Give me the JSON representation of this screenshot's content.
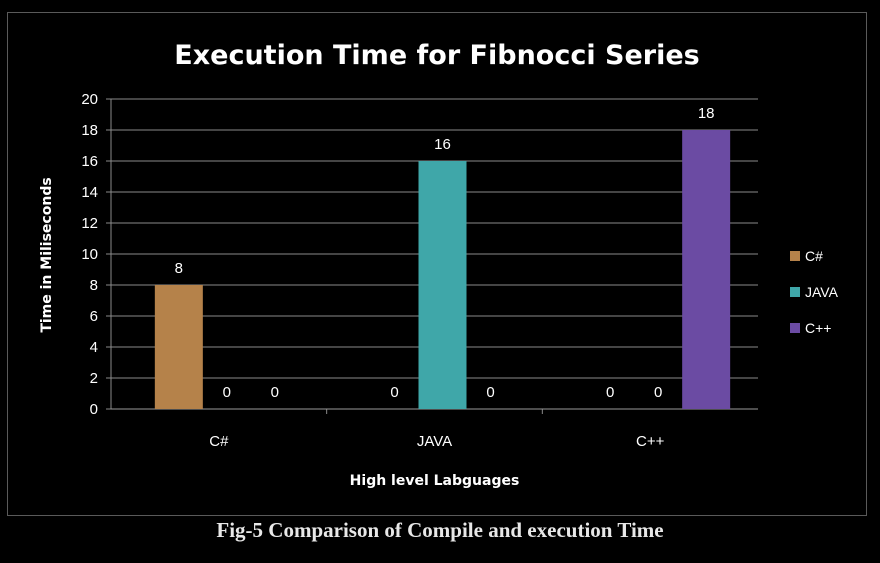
{
  "caption": "Fig-5 Comparison of Compile and execution Time",
  "chart_data": {
    "type": "bar",
    "title": "Execution Time  for Fibnocci Series",
    "xlabel": "High level Labguages",
    "ylabel": "Time in Miliseconds",
    "categories": [
      "C#",
      "JAVA",
      "C++"
    ],
    "series": [
      {
        "name": "C#",
        "values": [
          8,
          0,
          0
        ],
        "color": "#b5824a"
      },
      {
        "name": "JAVA",
        "values": [
          0,
          16,
          0
        ],
        "color": "#3fa7a9"
      },
      {
        "name": "C++",
        "values": [
          0,
          0,
          18
        ],
        "color": "#6b4ba3"
      }
    ],
    "ylim": [
      0,
      20
    ],
    "yticks": [
      0,
      2,
      4,
      6,
      8,
      10,
      12,
      14,
      16,
      18,
      20
    ],
    "grid": true,
    "legend_position": "right",
    "data_labels": true
  }
}
